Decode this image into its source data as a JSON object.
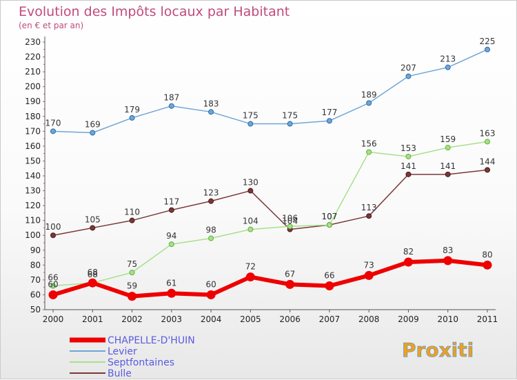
{
  "chart_data": {
    "type": "line",
    "title": "Evolution des Impôts locaux par Habitant",
    "subtitle": "(en € et par an)",
    "x": [
      "2000",
      "2001",
      "2002",
      "2003",
      "2004",
      "2005",
      "2006",
      "2007",
      "2008",
      "2009",
      "2010",
      "2011"
    ],
    "ylim": [
      50,
      230
    ],
    "yticks": [
      50,
      60,
      70,
      80,
      90,
      100,
      110,
      120,
      130,
      140,
      150,
      160,
      170,
      180,
      190,
      200,
      210,
      220,
      230
    ],
    "grid": false,
    "legend_position": "bottom-left",
    "series": [
      {
        "name": "CHAPELLE-D'HUIN",
        "color": "#ee0000",
        "values": [
          60,
          68,
          59,
          61,
          60,
          72,
          67,
          66,
          73,
          82,
          83,
          80
        ]
      },
      {
        "name": "Levier",
        "color": "#6fa6d6",
        "values": [
          170,
          169,
          179,
          187,
          183,
          175,
          175,
          177,
          189,
          207,
          213,
          225
        ]
      },
      {
        "name": "Septfontaines",
        "color": "#a8e08a",
        "values": [
          66,
          68,
          75,
          94,
          98,
          104,
          106,
          107,
          156,
          153,
          159,
          163
        ]
      },
      {
        "name": "Bulle",
        "color": "#7a3838",
        "values": [
          100,
          105,
          110,
          117,
          123,
          130,
          104,
          107,
          113,
          141,
          141,
          144
        ]
      }
    ]
  },
  "logo": {
    "text": "Proxiti"
  }
}
